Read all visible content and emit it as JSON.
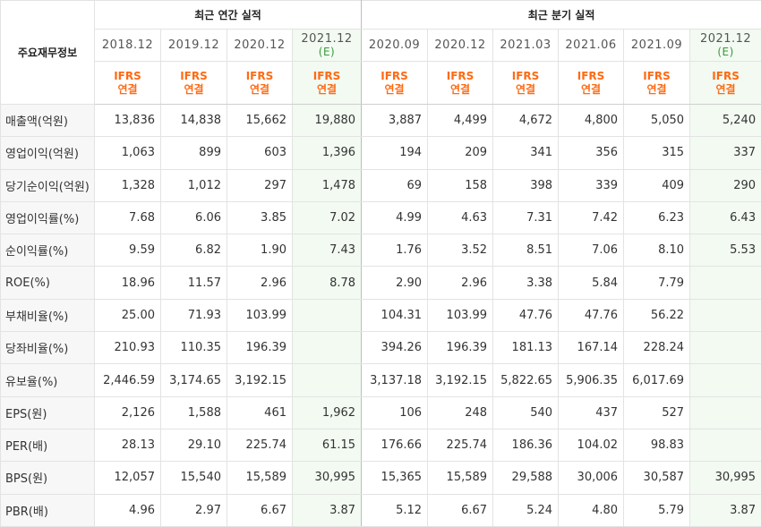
{
  "header": {
    "corner": "주요재무정보",
    "annual_title": "최근 연간 실적",
    "quarter_title": "최근 분기 실적"
  },
  "periods": [
    {
      "label": "2018.12",
      "est": ""
    },
    {
      "label": "2019.12",
      "est": ""
    },
    {
      "label": "2020.12",
      "est": ""
    },
    {
      "label": "2021.12",
      "est": "(E)"
    },
    {
      "label": "2020.09",
      "est": ""
    },
    {
      "label": "2020.12",
      "est": ""
    },
    {
      "label": "2021.03",
      "est": ""
    },
    {
      "label": "2021.06",
      "est": ""
    },
    {
      "label": "2021.09",
      "est": ""
    },
    {
      "label": "2021.12",
      "est": "(E)"
    }
  ],
  "ifrs": {
    "line1": "IFRS",
    "line2": "연결"
  },
  "rows": [
    {
      "label": "매출액(억원)",
      "values": [
        "13,836",
        "14,838",
        "15,662",
        "19,880",
        "3,887",
        "4,499",
        "4,672",
        "4,800",
        "5,050",
        "5,240"
      ]
    },
    {
      "label": "영업이익(억원)",
      "values": [
        "1,063",
        "899",
        "603",
        "1,396",
        "194",
        "209",
        "341",
        "356",
        "315",
        "337"
      ]
    },
    {
      "label": "당기순이익(억원)",
      "values": [
        "1,328",
        "1,012",
        "297",
        "1,478",
        "69",
        "158",
        "398",
        "339",
        "409",
        "290"
      ]
    },
    {
      "label": "영업이익률(%)",
      "values": [
        "7.68",
        "6.06",
        "3.85",
        "7.02",
        "4.99",
        "4.63",
        "7.31",
        "7.42",
        "6.23",
        "6.43"
      ]
    },
    {
      "label": "순이익률(%)",
      "values": [
        "9.59",
        "6.82",
        "1.90",
        "7.43",
        "1.76",
        "3.52",
        "8.51",
        "7.06",
        "8.10",
        "5.53"
      ]
    },
    {
      "label": "ROE(%)",
      "values": [
        "18.96",
        "11.57",
        "2.96",
        "8.78",
        "2.90",
        "2.96",
        "3.38",
        "5.84",
        "7.79",
        ""
      ]
    },
    {
      "label": "부채비율(%)",
      "values": [
        "25.00",
        "71.93",
        "103.99",
        "",
        "104.31",
        "103.99",
        "47.76",
        "47.76",
        "56.22",
        ""
      ]
    },
    {
      "label": "당좌비율(%)",
      "values": [
        "210.93",
        "110.35",
        "196.39",
        "",
        "394.26",
        "196.39",
        "181.13",
        "167.14",
        "228.24",
        ""
      ]
    },
    {
      "label": "유보율(%)",
      "values": [
        "2,446.59",
        "3,174.65",
        "3,192.15",
        "",
        "3,137.18",
        "3,192.15",
        "5,822.65",
        "5,906.35",
        "6,017.69",
        ""
      ]
    },
    {
      "label": "EPS(원)",
      "values": [
        "2,126",
        "1,588",
        "461",
        "1,962",
        "106",
        "248",
        "540",
        "437",
        "527",
        ""
      ]
    },
    {
      "label": "PER(배)",
      "values": [
        "28.13",
        "29.10",
        "225.74",
        "61.15",
        "176.66",
        "225.74",
        "186.36",
        "104.02",
        "98.83",
        ""
      ]
    },
    {
      "label": "BPS(원)",
      "values": [
        "12,057",
        "15,540",
        "15,589",
        "30,995",
        "15,365",
        "15,589",
        "29,588",
        "30,006",
        "30,587",
        "30,995"
      ]
    },
    {
      "label": "PBR(배)",
      "values": [
        "4.96",
        "2.97",
        "6.67",
        "3.87",
        "5.12",
        "6.67",
        "5.24",
        "4.80",
        "5.79",
        "3.87"
      ]
    }
  ]
}
